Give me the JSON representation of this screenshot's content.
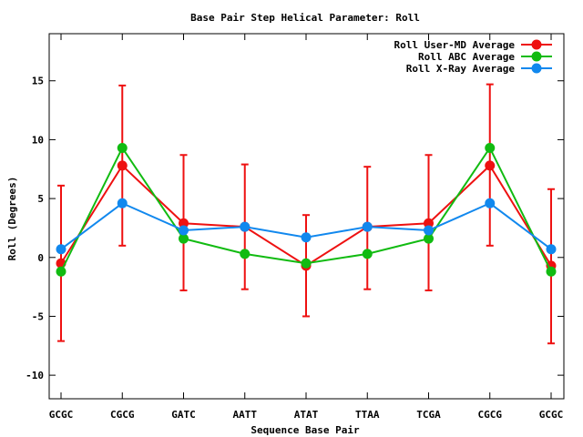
{
  "chart_data": {
    "type": "line",
    "title": "Base Pair Step Helical Parameter: Roll",
    "xlabel": "Sequence Base Pair",
    "ylabel": "Roll (Degrees)",
    "categories": [
      "GCGC",
      "CGCG",
      "GATC",
      "AATT",
      "ATAT",
      "TTAA",
      "TCGA",
      "CGCG",
      "GCGC"
    ],
    "ylim": [
      -12,
      19
    ],
    "yticks": [
      -10,
      -5,
      0,
      5,
      10,
      15
    ],
    "legend_position": "top-right",
    "grid": false,
    "series": [
      {
        "name": "Roll User-MD Average",
        "color": "#ee1111",
        "values": [
          -0.5,
          7.8,
          2.9,
          2.6,
          -0.7,
          2.6,
          2.9,
          7.8,
          -0.7
        ],
        "error_low": [
          -7.1,
          1.0,
          -2.8,
          -2.7,
          -5.0,
          -2.7,
          -2.8,
          1.0,
          -7.3
        ],
        "error_high": [
          6.1,
          14.6,
          8.7,
          7.9,
          3.6,
          7.7,
          8.7,
          14.7,
          5.8
        ]
      },
      {
        "name": "Roll ABC Average",
        "color": "#11bb11",
        "values": [
          -1.2,
          9.3,
          1.6,
          0.3,
          -0.5,
          0.3,
          1.6,
          9.3,
          -1.2
        ]
      },
      {
        "name": "Roll X-Ray Average",
        "color": "#1188ee",
        "values": [
          0.7,
          4.6,
          2.3,
          2.6,
          1.7,
          2.6,
          2.3,
          4.6,
          0.7
        ]
      }
    ]
  }
}
